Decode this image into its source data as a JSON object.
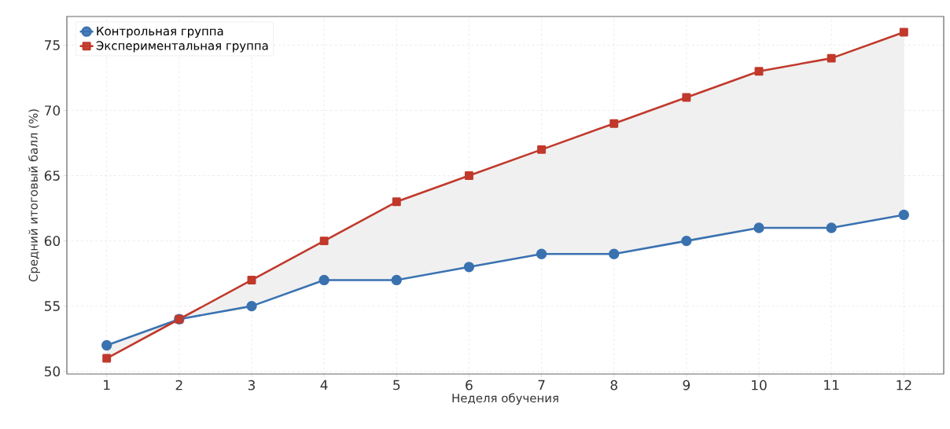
{
  "chart_data": {
    "type": "line",
    "xlabel": "Неделя обучения",
    "ylabel": "Средний итоговый балл (%)",
    "x": [
      1,
      2,
      3,
      4,
      5,
      6,
      7,
      8,
      9,
      10,
      11,
      12
    ],
    "series": [
      {
        "name": "Контрольная группа",
        "color": "#3a72b0",
        "marker": "circle",
        "values": [
          52,
          54,
          55,
          57,
          57,
          58,
          59,
          59,
          60,
          61,
          61,
          62
        ]
      },
      {
        "name": "Экспериментальная группа",
        "color": "#c0392b",
        "marker": "square",
        "values": [
          51,
          54,
          57,
          60,
          63,
          65,
          67,
          69,
          71,
          73,
          74,
          76
        ],
        "lower": [
          52,
          54,
          55,
          57,
          57,
          58,
          59,
          59,
          60,
          61,
          61,
          62
        ],
        "upper": [
          51,
          54,
          57,
          60,
          63,
          65,
          67,
          69,
          71,
          73,
          74,
          76
        ]
      }
    ],
    "xlim": [
      0.45,
      12.55
    ],
    "ylim": [
      49.8,
      77.2
    ],
    "xticks": [
      1,
      2,
      3,
      4,
      5,
      6,
      7,
      8,
      9,
      10,
      11,
      12
    ],
    "yticks": [
      50,
      55,
      60,
      65,
      70,
      75
    ],
    "grid": true,
    "legend": "top left",
    "line_style": "solid"
  }
}
